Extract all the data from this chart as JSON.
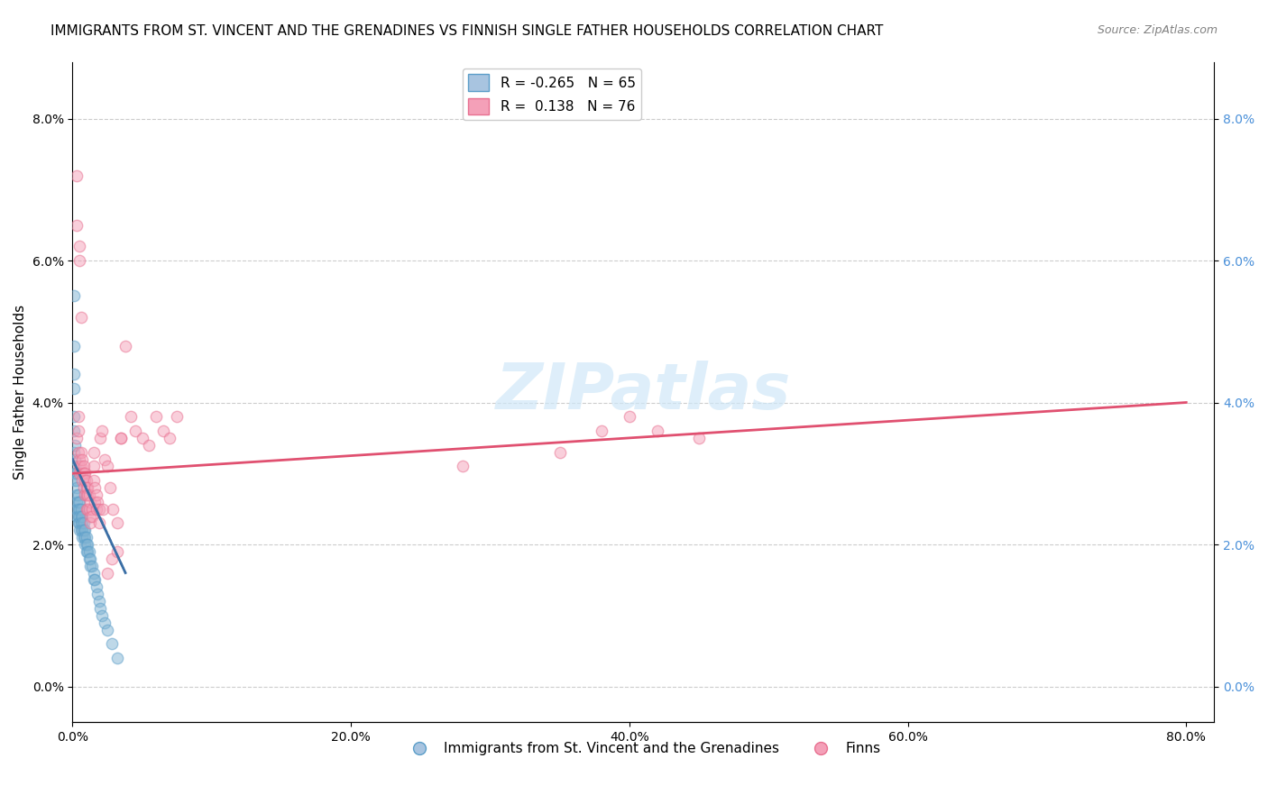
{
  "title": "IMMIGRANTS FROM ST. VINCENT AND THE GRENADINES VS FINNISH SINGLE FATHER HOUSEHOLDS CORRELATION CHART",
  "source": "Source: ZipAtlas.com",
  "xlabel_ticks": [
    "0.0%",
    "20.0%",
    "40.0%",
    "60.0%",
    "80.0%"
  ],
  "ylabel_ticks": [
    "0.0%",
    "2.0%",
    "4.0%",
    "6.0%",
    "8.0%"
  ],
  "xlabel_label": "",
  "ylabel_label": "Single Father Households",
  "legend_entries": [
    {
      "label": "R = -0.265   N = 65",
      "color": "#a8c4e0"
    },
    {
      "label": "R =  0.138   N = 76",
      "color": "#f4a0b0"
    }
  ],
  "legend_label1": "Immigrants from St. Vincent and the Grenadines",
  "legend_label2": "Finns",
  "watermark": "ZIPatlas",
  "background_color": "#ffffff",
  "grid_color": "#cccccc",
  "title_fontsize": 11,
  "blue_scatter_x": [
    0.001,
    0.001,
    0.001,
    0.001,
    0.001,
    0.002,
    0.002,
    0.002,
    0.002,
    0.002,
    0.003,
    0.003,
    0.003,
    0.003,
    0.003,
    0.003,
    0.003,
    0.004,
    0.004,
    0.004,
    0.004,
    0.004,
    0.005,
    0.005,
    0.005,
    0.005,
    0.005,
    0.006,
    0.006,
    0.006,
    0.006,
    0.007,
    0.007,
    0.007,
    0.007,
    0.008,
    0.008,
    0.008,
    0.009,
    0.009,
    0.009,
    0.01,
    0.01,
    0.01,
    0.011,
    0.011,
    0.012,
    0.012,
    0.013,
    0.013,
    0.014,
    0.015,
    0.015,
    0.016,
    0.017,
    0.018,
    0.019,
    0.02,
    0.021,
    0.023,
    0.025,
    0.028,
    0.032,
    0.001,
    0.001
  ],
  "blue_scatter_y": [
    0.048,
    0.042,
    0.038,
    0.036,
    0.033,
    0.034,
    0.032,
    0.031,
    0.03,
    0.029,
    0.03,
    0.029,
    0.028,
    0.027,
    0.026,
    0.025,
    0.024,
    0.027,
    0.026,
    0.025,
    0.024,
    0.023,
    0.026,
    0.025,
    0.024,
    0.023,
    0.022,
    0.025,
    0.024,
    0.023,
    0.022,
    0.024,
    0.023,
    0.022,
    0.021,
    0.023,
    0.022,
    0.021,
    0.022,
    0.021,
    0.02,
    0.021,
    0.02,
    0.019,
    0.02,
    0.019,
    0.019,
    0.018,
    0.018,
    0.017,
    0.017,
    0.016,
    0.015,
    0.015,
    0.014,
    0.013,
    0.012,
    0.011,
    0.01,
    0.009,
    0.008,
    0.006,
    0.004,
    0.055,
    0.044
  ],
  "pink_scatter_x": [
    0.003,
    0.004,
    0.004,
    0.004,
    0.005,
    0.005,
    0.005,
    0.006,
    0.006,
    0.007,
    0.007,
    0.007,
    0.008,
    0.008,
    0.008,
    0.009,
    0.009,
    0.009,
    0.01,
    0.01,
    0.01,
    0.01,
    0.011,
    0.011,
    0.011,
    0.012,
    0.012,
    0.013,
    0.013,
    0.013,
    0.014,
    0.014,
    0.015,
    0.015,
    0.015,
    0.016,
    0.016,
    0.017,
    0.017,
    0.018,
    0.019,
    0.019,
    0.02,
    0.021,
    0.022,
    0.023,
    0.025,
    0.027,
    0.029,
    0.032,
    0.035,
    0.038,
    0.042,
    0.045,
    0.05,
    0.055,
    0.06,
    0.065,
    0.07,
    0.075,
    0.35,
    0.38,
    0.4,
    0.42,
    0.45,
    0.003,
    0.003,
    0.005,
    0.005,
    0.28,
    0.006,
    0.025,
    0.028,
    0.032,
    0.035
  ],
  "pink_scatter_y": [
    0.035,
    0.038,
    0.036,
    0.033,
    0.032,
    0.031,
    0.03,
    0.033,
    0.031,
    0.032,
    0.03,
    0.029,
    0.031,
    0.03,
    0.028,
    0.03,
    0.029,
    0.027,
    0.029,
    0.028,
    0.027,
    0.025,
    0.028,
    0.027,
    0.025,
    0.027,
    0.025,
    0.026,
    0.024,
    0.023,
    0.025,
    0.024,
    0.033,
    0.031,
    0.029,
    0.028,
    0.026,
    0.027,
    0.025,
    0.026,
    0.025,
    0.023,
    0.035,
    0.036,
    0.025,
    0.032,
    0.031,
    0.028,
    0.025,
    0.023,
    0.035,
    0.048,
    0.038,
    0.036,
    0.035,
    0.034,
    0.038,
    0.036,
    0.035,
    0.038,
    0.033,
    0.036,
    0.038,
    0.036,
    0.035,
    0.072,
    0.065,
    0.062,
    0.06,
    0.031,
    0.052,
    0.016,
    0.018,
    0.019,
    0.035
  ],
  "blue_line_x": [
    0.0,
    0.035
  ],
  "blue_line_y_intercept": 0.032,
  "blue_line_slope": -0.265,
  "pink_line_x": [
    0.0,
    0.8
  ],
  "pink_line_y_intercept": 0.03,
  "pink_line_slope": 0.138,
  "xlim": [
    0.0,
    0.82
  ],
  "ylim": [
    -0.005,
    0.088
  ],
  "scatter_size": 80,
  "scatter_alpha": 0.5,
  "scatter_linewidth": 1.0,
  "blue_color": "#7fb3d3",
  "blue_edge_color": "#5b9ec9",
  "pink_color": "#f4a0b8",
  "pink_edge_color": "#e87090",
  "blue_line_color": "#3a6ea5",
  "pink_line_color": "#e05070"
}
